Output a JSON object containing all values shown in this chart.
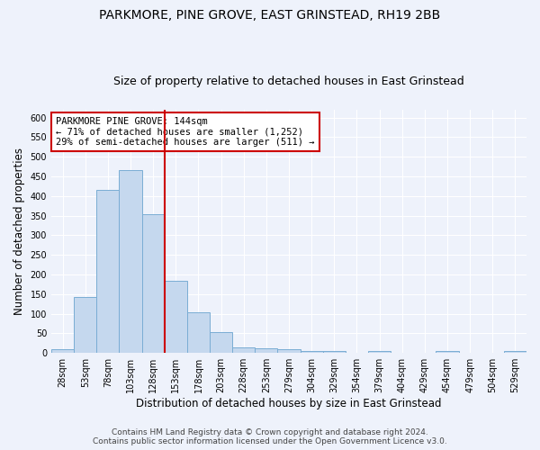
{
  "title": "PARKMORE, PINE GROVE, EAST GRINSTEAD, RH19 2BB",
  "subtitle": "Size of property relative to detached houses in East Grinstead",
  "xlabel": "Distribution of detached houses by size in East Grinstead",
  "ylabel": "Number of detached properties",
  "bar_color": "#c5d8ee",
  "bar_edge_color": "#7aadd4",
  "bar_values": [
    10,
    143,
    416,
    467,
    353,
    185,
    103,
    53,
    15,
    13,
    10,
    5,
    5,
    0,
    5,
    0,
    0,
    5,
    0,
    0,
    5
  ],
  "x_labels": [
    "28sqm",
    "53sqm",
    "78sqm",
    "103sqm",
    "128sqm",
    "153sqm",
    "178sqm",
    "203sqm",
    "228sqm",
    "253sqm",
    "279sqm",
    "304sqm",
    "329sqm",
    "354sqm",
    "379sqm",
    "404sqm",
    "429sqm",
    "454sqm",
    "479sqm",
    "504sqm",
    "529sqm"
  ],
  "vline_x": 4.5,
  "vline_color": "#cc0000",
  "annotation_text": "PARKMORE PINE GROVE: 144sqm\n← 71% of detached houses are smaller (1,252)\n29% of semi-detached houses are larger (511) →",
  "annotation_box_color": "#ffffff",
  "annotation_box_edge": "#cc0000",
  "ylim": [
    0,
    620
  ],
  "yticks": [
    0,
    50,
    100,
    150,
    200,
    250,
    300,
    350,
    400,
    450,
    500,
    550,
    600
  ],
  "footer_line1": "Contains HM Land Registry data © Crown copyright and database right 2024.",
  "footer_line2": "Contains public sector information licensed under the Open Government Licence v3.0.",
  "background_color": "#eef2fb",
  "grid_color": "#ffffff",
  "title_fontsize": 10,
  "subtitle_fontsize": 9,
  "axis_label_fontsize": 8.5,
  "tick_fontsize": 7,
  "footer_fontsize": 6.5,
  "annotation_fontsize": 7.5
}
